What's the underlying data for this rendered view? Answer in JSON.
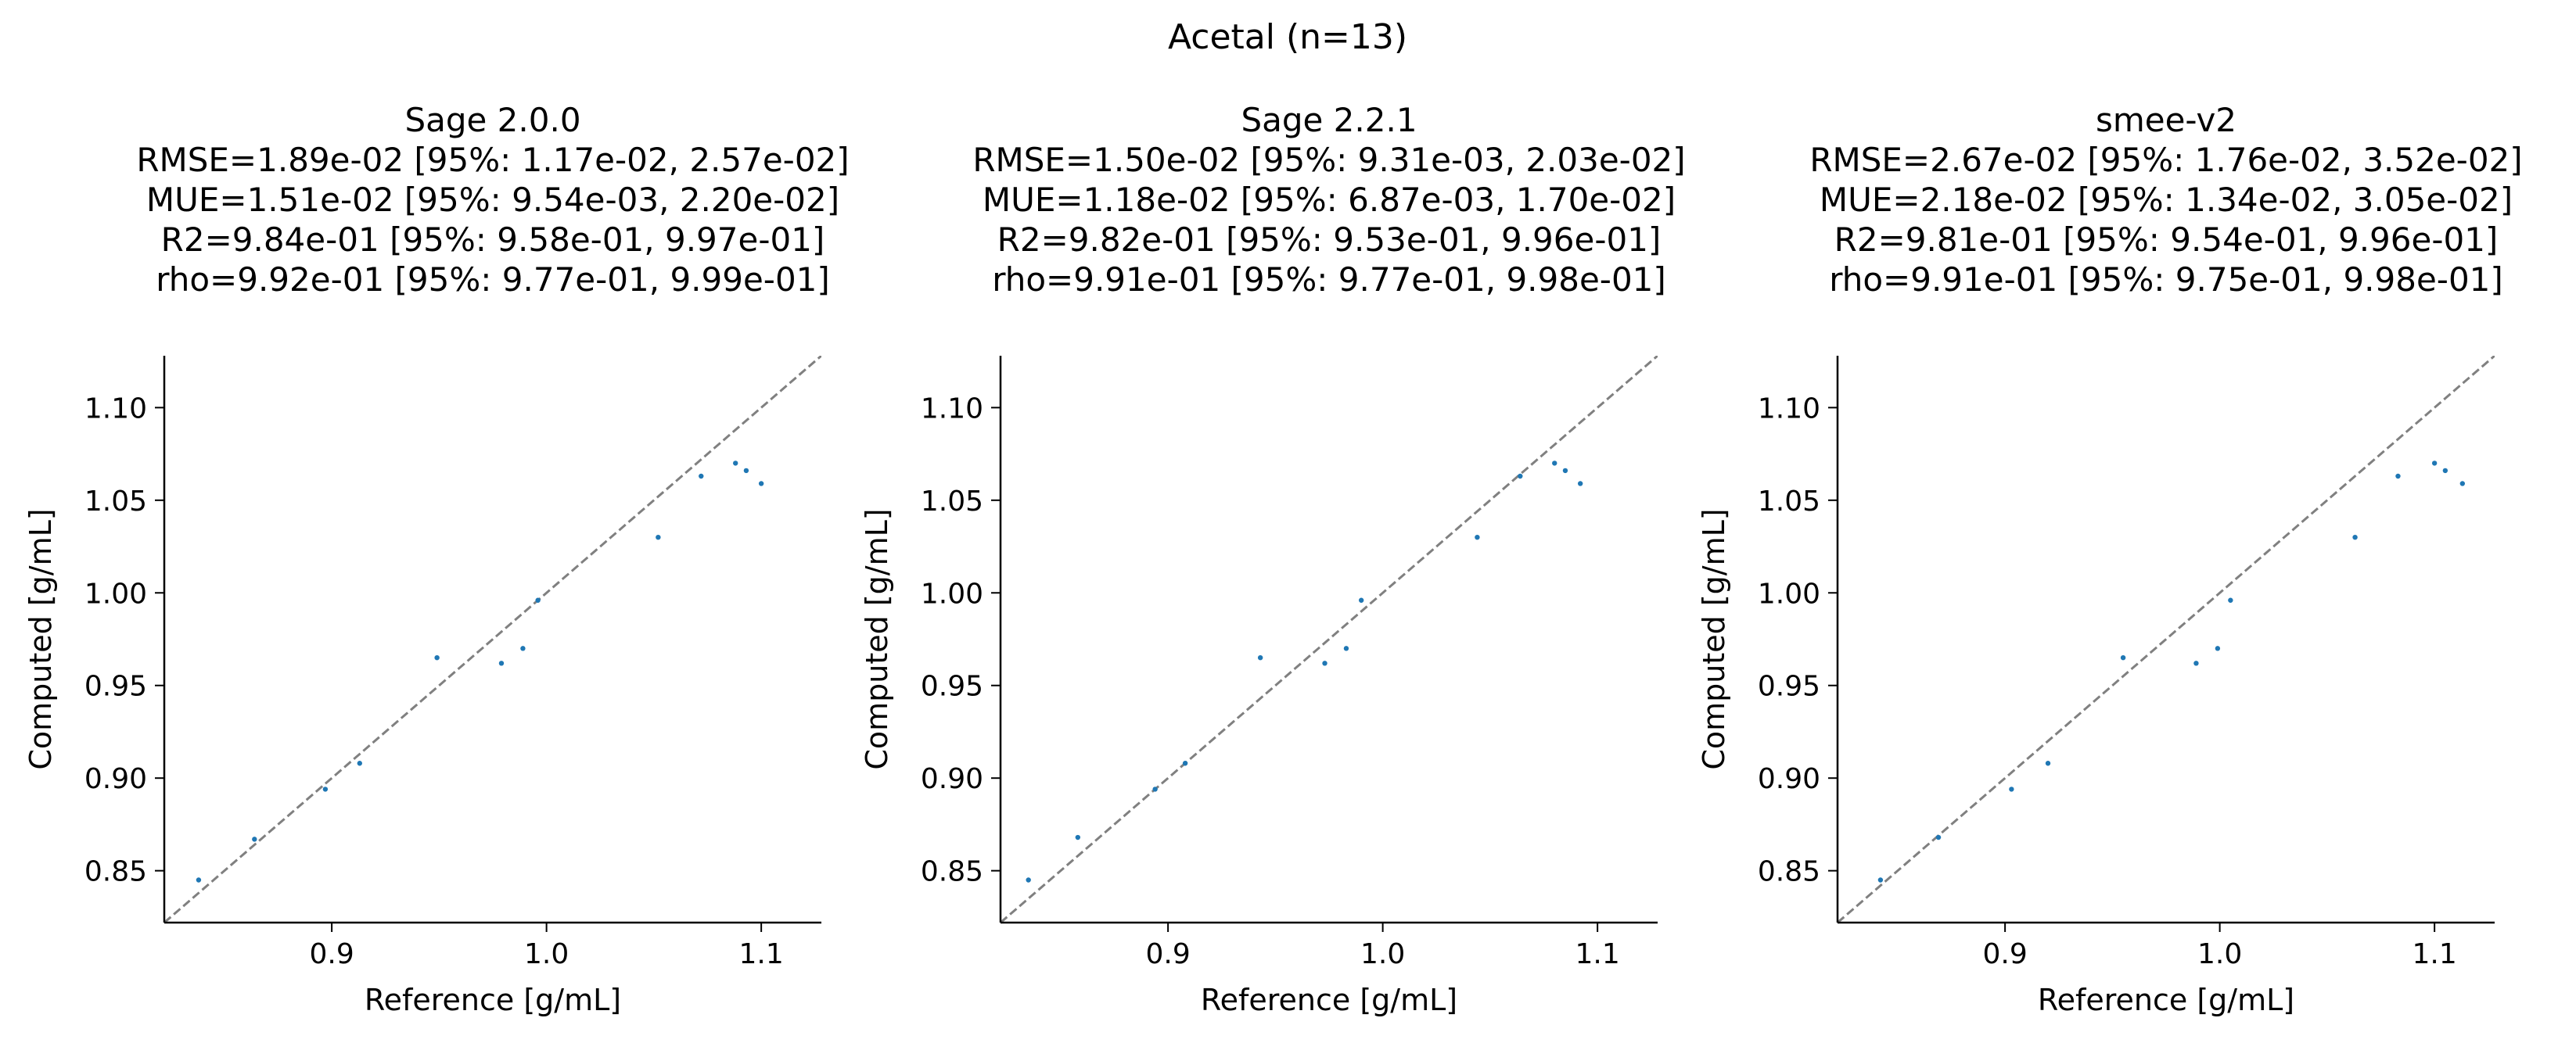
{
  "figure": {
    "suptitle": "Acetal (n=13)"
  },
  "style": {
    "point_color": "#1f77b4",
    "diagonal_color": "#808080"
  },
  "chart_data": [
    {
      "type": "scatter",
      "title": "Sage 2.0.0",
      "stats": [
        "RMSE=1.89e-02 [95%: 1.17e-02, 2.57e-02]",
        "MUE=1.51e-02 [95%: 9.54e-03, 2.20e-02]",
        "R2=9.84e-01 [95%: 9.58e-01, 9.97e-01]",
        "rho=9.92e-01 [95%: 9.77e-01, 9.99e-01]"
      ],
      "xlabel": "Reference [g/mL]",
      "ylabel": "Computed [g/mL]",
      "xlim": [
        0.822,
        1.128
      ],
      "ylim": [
        0.822,
        1.128
      ],
      "xticks": [
        "0.9",
        "1.0",
        "1.1"
      ],
      "yticks": [
        "0.85",
        "0.90",
        "0.95",
        "1.00",
        "1.05",
        "1.10"
      ],
      "grid": false,
      "points": [
        {
          "x": 0.838,
          "y": 0.845
        },
        {
          "x": 0.864,
          "y": 0.867
        },
        {
          "x": 0.897,
          "y": 0.894
        },
        {
          "x": 0.913,
          "y": 0.908
        },
        {
          "x": 0.949,
          "y": 0.965
        },
        {
          "x": 0.979,
          "y": 0.962
        },
        {
          "x": 0.989,
          "y": 0.97
        },
        {
          "x": 0.996,
          "y": 0.996
        },
        {
          "x": 1.052,
          "y": 1.03
        },
        {
          "x": 1.072,
          "y": 1.063
        },
        {
          "x": 1.088,
          "y": 1.07
        },
        {
          "x": 1.093,
          "y": 1.066
        },
        {
          "x": 1.1,
          "y": 1.059
        }
      ]
    },
    {
      "type": "scatter",
      "title": "Sage 2.2.1",
      "stats": [
        "RMSE=1.50e-02 [95%: 9.31e-03, 2.03e-02]",
        "MUE=1.18e-02 [95%: 6.87e-03, 1.70e-02]",
        "R2=9.82e-01 [95%: 9.53e-01, 9.96e-01]",
        "rho=9.91e-01 [95%: 9.77e-01, 9.98e-01]"
      ],
      "xlabel": "Reference [g/mL]",
      "ylabel": "Computed [g/mL]",
      "xlim": [
        0.822,
        1.128
      ],
      "ylim": [
        0.822,
        1.128
      ],
      "xticks": [
        "0.9",
        "1.0",
        "1.1"
      ],
      "yticks": [
        "0.85",
        "0.90",
        "0.95",
        "1.00",
        "1.05",
        "1.10"
      ],
      "grid": false,
      "points": [
        {
          "x": 0.835,
          "y": 0.845
        },
        {
          "x": 0.858,
          "y": 0.868
        },
        {
          "x": 0.894,
          "y": 0.894
        },
        {
          "x": 0.908,
          "y": 0.908
        },
        {
          "x": 0.943,
          "y": 0.965
        },
        {
          "x": 0.973,
          "y": 0.962
        },
        {
          "x": 0.983,
          "y": 0.97
        },
        {
          "x": 0.99,
          "y": 0.996
        },
        {
          "x": 1.044,
          "y": 1.03
        },
        {
          "x": 1.064,
          "y": 1.063
        },
        {
          "x": 1.08,
          "y": 1.07
        },
        {
          "x": 1.085,
          "y": 1.066
        },
        {
          "x": 1.092,
          "y": 1.059
        }
      ]
    },
    {
      "type": "scatter",
      "title": "smee-v2",
      "stats": [
        "RMSE=2.67e-02 [95%: 1.76e-02, 3.52e-02]",
        "MUE=2.18e-02 [95%: 1.34e-02, 3.05e-02]",
        "R2=9.81e-01 [95%: 9.54e-01, 9.96e-01]",
        "rho=9.91e-01 [95%: 9.75e-01, 9.98e-01]"
      ],
      "xlabel": "Reference [g/mL]",
      "ylabel": "Computed [g/mL]",
      "xlim": [
        0.822,
        1.128
      ],
      "ylim": [
        0.822,
        1.128
      ],
      "xticks": [
        "0.9",
        "1.0",
        "1.1"
      ],
      "yticks": [
        "0.85",
        "0.90",
        "0.95",
        "1.00",
        "1.05",
        "1.10"
      ],
      "grid": false,
      "points": [
        {
          "x": 0.842,
          "y": 0.845
        },
        {
          "x": 0.869,
          "y": 0.868
        },
        {
          "x": 0.903,
          "y": 0.894
        },
        {
          "x": 0.92,
          "y": 0.908
        },
        {
          "x": 0.955,
          "y": 0.965
        },
        {
          "x": 0.989,
          "y": 0.962
        },
        {
          "x": 0.999,
          "y": 0.97
        },
        {
          "x": 1.005,
          "y": 0.996
        },
        {
          "x": 1.063,
          "y": 1.03
        },
        {
          "x": 1.083,
          "y": 1.063
        },
        {
          "x": 1.1,
          "y": 1.07
        },
        {
          "x": 1.105,
          "y": 1.066
        },
        {
          "x": 1.113,
          "y": 1.059
        }
      ]
    }
  ]
}
